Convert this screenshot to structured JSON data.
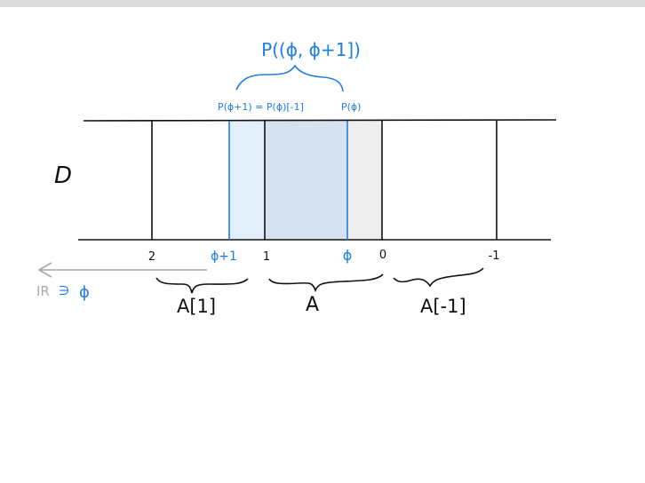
{
  "colors": {
    "ink": "#111111",
    "accent": "#1f7fe0",
    "light_blue_fill": "#e3eefb",
    "mid_blue_fill": "#d5e3f1",
    "gray_fill": "#eeeeee",
    "arrow_gray": "#a9a9a9",
    "topbar": "#dcdcdc"
  },
  "diagram": {
    "top_label": "P((ϕ, ϕ+1])",
    "left_endpoint_label": "P(ϕ+1) = P(ϕ)[-1]",
    "right_endpoint_label": "P(ϕ)",
    "d_label": "D",
    "axis_ticks": {
      "two": "2",
      "phi_plus_one": "ϕ+1",
      "one": "1",
      "phi": "ϕ",
      "zero": "0",
      "minus_one": "-1"
    },
    "arrow_label_r": "IR",
    "arrow_label_ni": "∋",
    "arrow_label_phi": "ϕ",
    "brace_labels": {
      "a_shift_plus": "A[1]",
      "a": "A",
      "a_shift_minus": "A[-1]"
    }
  }
}
